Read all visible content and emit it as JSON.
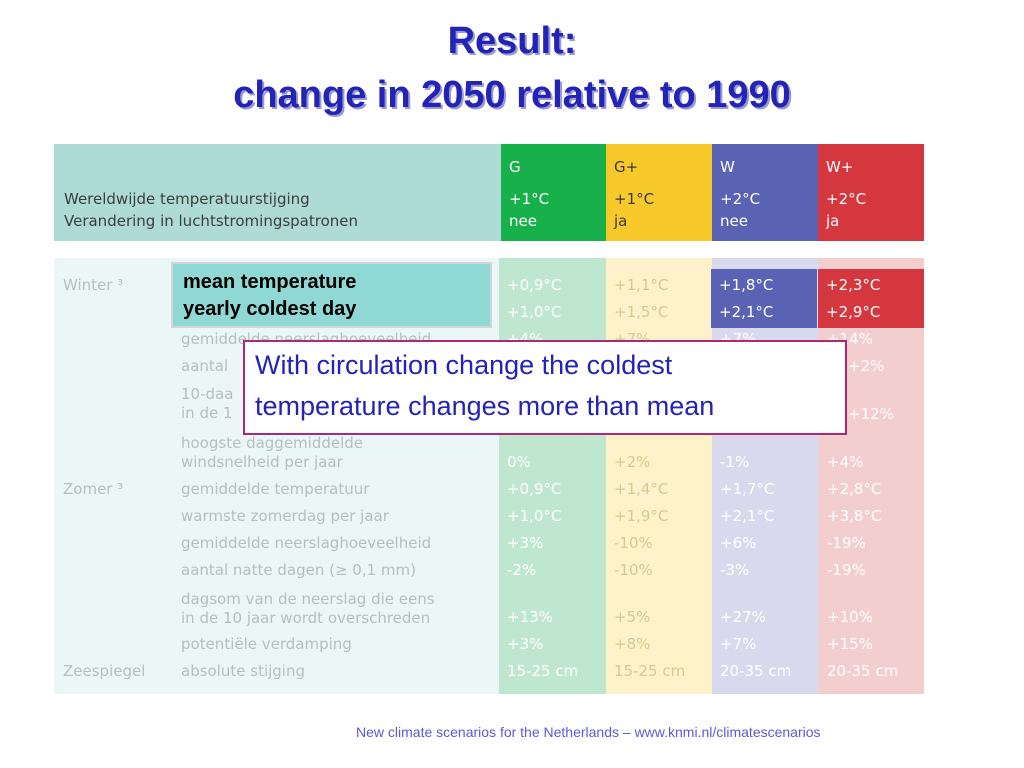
{
  "title": {
    "line1": "Result:",
    "line2": "change in 2050 relative to 1990"
  },
  "header": {
    "left_line1": "Wereldwijde temperatuurstijging",
    "left_line2": "Verandering in luchtstromingspatronen",
    "columns": [
      {
        "name": "G",
        "temp": "+1°C",
        "circ": "nee",
        "color": "#18b04a",
        "light": "#bfe6cf"
      },
      {
        "name": "G+",
        "temp": "+1°C",
        "circ": "ja",
        "color": "#f8c92a",
        "light": "#fdf2c9"
      },
      {
        "name": "W",
        "temp": "+2°C",
        "circ": "nee",
        "color": "#5a62b4",
        "light": "#d9d9ee"
      },
      {
        "name": "W+",
        "temp": "+2°C",
        "circ": "ja",
        "color": "#d4373e",
        "light": "#f2cece"
      }
    ]
  },
  "body": {
    "section_labels": [
      {
        "text": "Winter ³"
      },
      {
        "text": "Zomer ³"
      },
      {
        "text": "Zeespiegel"
      }
    ],
    "visible_row_labels": [
      {
        "text": "gemiddelde neerslaghoeveelheid"
      },
      {
        "text": "aantal"
      },
      {
        "text": "10-daa"
      },
      {
        "text": "in de 1"
      },
      {
        "text": "hoogste daggemiddelde"
      },
      {
        "text": "windsnelheid per jaar"
      },
      {
        "text": "gemiddelde temperatuur"
      },
      {
        "text": "warmste zomerdag per jaar"
      },
      {
        "text": "gemiddelde neerslaghoeveelheid"
      },
      {
        "text": "aantal natte dagen (≥ 0,1 mm)"
      },
      {
        "text": "dagsom van de neerslag die eens"
      },
      {
        "text": "in de 10 jaar wordt overschreden"
      },
      {
        "text": "potentiële verdamping"
      },
      {
        "text": "absolute stijging"
      }
    ],
    "highlight_rows": [
      {
        "values": [
          "+0,9°C",
          "+1,1°C",
          "+1,8°C",
          "+2,3°C"
        ]
      },
      {
        "values": [
          "+1,0°C",
          "+1,5°C",
          "+2,1°C",
          "+2,9°C"
        ]
      }
    ],
    "partial_row": {
      "values": [
        "+4%",
        "+7%",
        "+7%",
        "+14%"
      ]
    },
    "row_aantal_winter": {
      "values": [
        "",
        "",
        "",
        "+2%"
      ]
    },
    "row_10daags_winter": {
      "values": [
        "",
        "",
        "",
        "+12%"
      ]
    },
    "rows": [
      {
        "values": [
          "0%",
          "+2%",
          "-1%",
          "+4%"
        ]
      },
      {
        "values": [
          "+0,9°C",
          "+1,4°C",
          "+1,7°C",
          "+2,8°C"
        ]
      },
      {
        "values": [
          "+1,0°C",
          "+1,9°C",
          "+2,1°C",
          "+3,8°C"
        ]
      },
      {
        "values": [
          "+3%",
          "-10%",
          "+6%",
          "-19%"
        ]
      },
      {
        "values": [
          "-2%",
          "-10%",
          "-3%",
          "-19%"
        ]
      },
      {
        "values": [
          "+13%",
          "+5%",
          "+27%",
          "+10%"
        ]
      },
      {
        "values": [
          "+3%",
          "+8%",
          "+7%",
          "+15%"
        ]
      },
      {
        "values": [
          "15-25 cm",
          "15-25 cm",
          "20-35 cm",
          "20-35 cm"
        ]
      }
    ]
  },
  "callout_mean": {
    "line1": "mean temperature",
    "line2": "yearly coldest day"
  },
  "callout_circulation": {
    "line1": "With circulation change the coldest",
    "line2": "temperature changes more than mean"
  },
  "footer": "New climate scenarios for the Netherlands – www.knmi.nl/climatescenarios"
}
